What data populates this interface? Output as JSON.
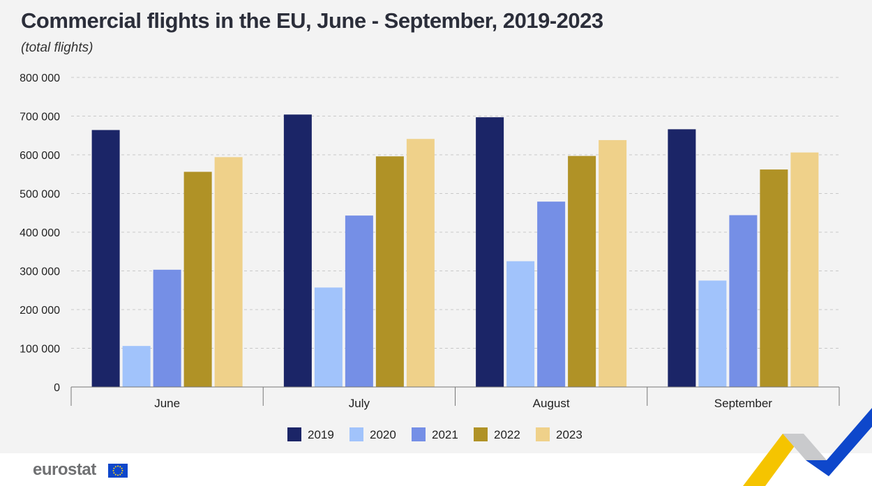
{
  "title": "Commercial flights in the EU, June - September, 2019-2023",
  "subtitle": "(total flights)",
  "brand": "eurostat",
  "colors": {
    "2019": "#1b2567",
    "2020": "#a1c3fb",
    "2021": "#758fe6",
    "2022": "#b09226",
    "2023": "#efd18a"
  },
  "chart_data": {
    "type": "bar",
    "title": "Commercial flights in the EU, June - September, 2019-2023",
    "subtitle": "(total flights)",
    "xlabel": "",
    "ylabel": "",
    "categories": [
      "June",
      "July",
      "August",
      "September"
    ],
    "series": [
      {
        "name": "2019",
        "values": [
          664000,
          704000,
          697000,
          666000
        ]
      },
      {
        "name": "2020",
        "values": [
          106000,
          257000,
          325000,
          275000
        ]
      },
      {
        "name": "2021",
        "values": [
          303000,
          443000,
          479000,
          444000
        ]
      },
      {
        "name": "2022",
        "values": [
          556000,
          596000,
          597000,
          562000
        ]
      },
      {
        "name": "2023",
        "values": [
          594000,
          641000,
          638000,
          606000
        ]
      }
    ],
    "ylim": [
      0,
      800000
    ],
    "yticks": [
      0,
      100000,
      200000,
      300000,
      400000,
      500000,
      600000,
      700000,
      800000
    ],
    "ytick_labels": [
      "0",
      "100 000",
      "200 000",
      "300 000",
      "400 000",
      "500 000",
      "600 000",
      "700 000",
      "800 000"
    ],
    "grid": true,
    "legend": "bottom-center"
  }
}
